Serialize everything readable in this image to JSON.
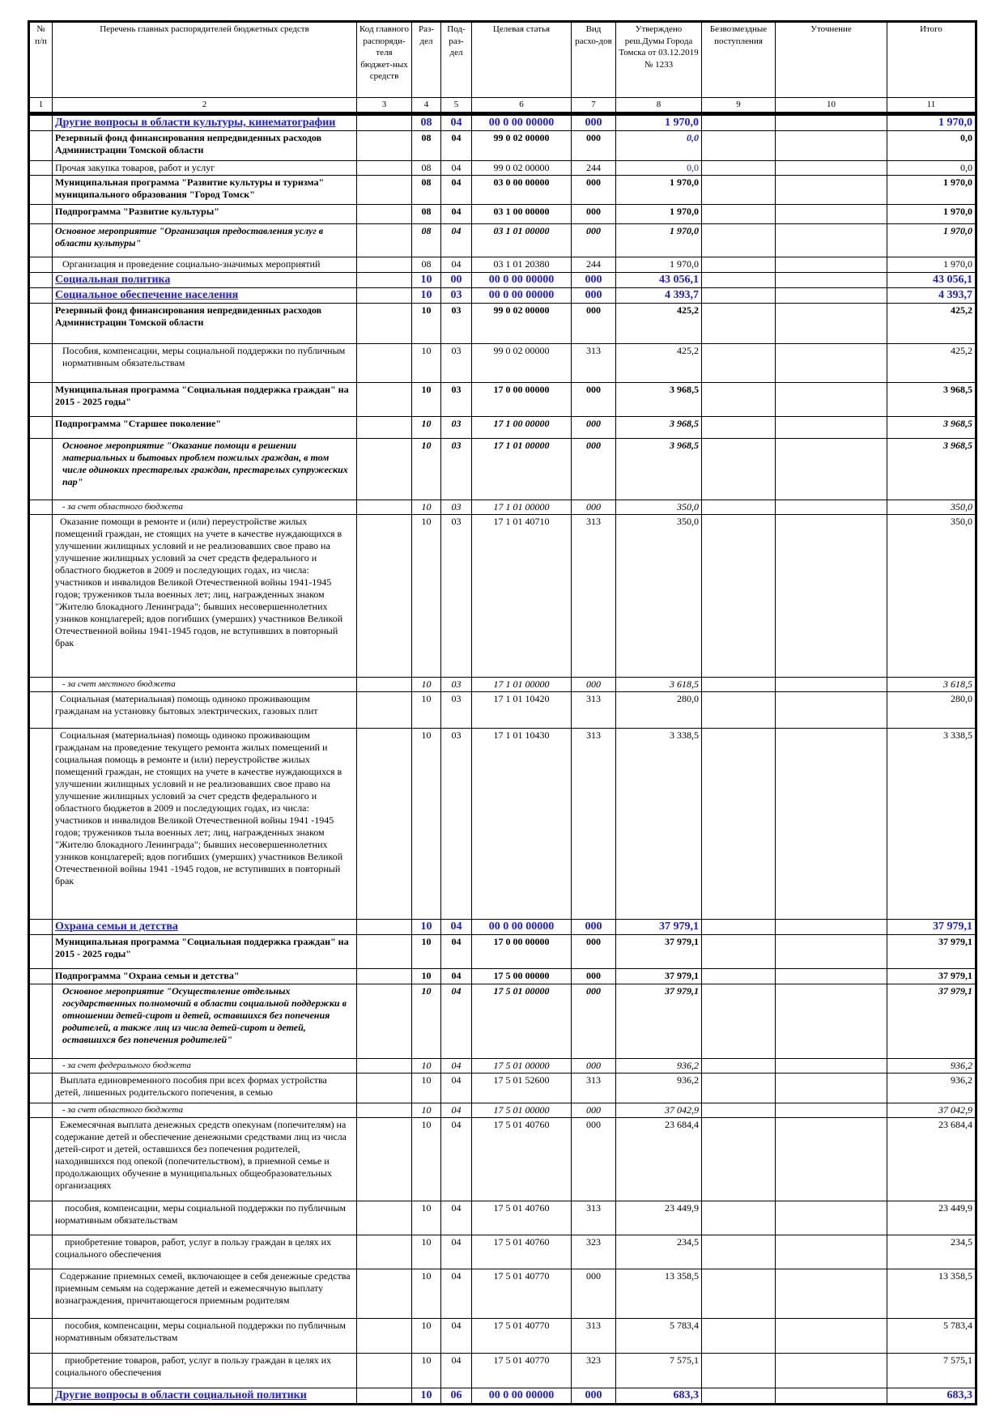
{
  "header": {
    "col1": "№ п/п",
    "col2": "Перечень главных распорядителей бюджетных средств",
    "col3": "Код главного распоряди-теля бюджет-ных средств",
    "col4": "Раз-дел",
    "col5": "Под-раз-дел",
    "col6": "Целевая статья",
    "col7": "Вид расхо-дов",
    "col8": "Утверждено реш.Думы Города Томска от 03.12.2019 № 1233",
    "col9": "Безвозмездные поступления",
    "col10": "Уточнение",
    "col11": "Итого"
  },
  "column_numbers": [
    "1",
    "2",
    "3",
    "4",
    "5",
    "6",
    "7",
    "8",
    "9",
    "10",
    "11"
  ],
  "accent_color": "#1a1aff",
  "rows": [
    {
      "style": "section",
      "name": "Другие вопросы в области культуры, кинематографии",
      "rz": "08",
      "prz": "04",
      "cs": "00 0 00 00000",
      "vr": "000",
      "approved": "1 970,0",
      "total": "1 970,0"
    },
    {
      "style": "bold",
      "name": "Резервный фонд финансирования непредвиденных расходов Администрации Томской области",
      "rz": "08",
      "prz": "04",
      "cs": "99 0 02 00000",
      "vr": "000",
      "approved": "0,0",
      "approved_color": "#1a1aff",
      "approved_italic": true,
      "total": "0,0"
    },
    {
      "style": "normal",
      "name": "Прочая закупка товаров, работ и услуг",
      "rz": "08",
      "prz": "04",
      "cs": "99 0 02 00000",
      "vr": "244",
      "approved": "0,0",
      "approved_color": "#1a1aff",
      "total": "0,0"
    },
    {
      "style": "bold",
      "name": "Муниципальная программа \"Развитие культуры и туризма\" муниципального образования \"Город Томск\"",
      "rz": "08",
      "prz": "04",
      "cs": "03 0 00 00000",
      "vr": "000",
      "approved": "1 970,0",
      "total": "1 970,0"
    },
    {
      "style": "bold",
      "name": "Подпрограмма \"Развитие культуры\"",
      "rz": "08",
      "prz": "04",
      "cs": "03 1 00 00000",
      "vr": "000",
      "approved": "1 970,0",
      "total": "1 970,0"
    },
    {
      "style": "bolditalic",
      "name": " Основное мероприятие \"Организация предоставления услуг в области культуры\"",
      "rz": "08",
      "prz": "04",
      "cs": "03 1 01 00000",
      "vr": "000",
      "approved": "1 970,0",
      "total": "1 970,0"
    },
    {
      "style": "normal",
      "name": "Организация и проведение социально-значимых мероприятий",
      "rz": "08",
      "prz": "04",
      "cs": "03 1 01 20380",
      "vr": "244",
      "approved": "1 970,0",
      "total": "1 970,0",
      "indent": true
    },
    {
      "style": "section",
      "name": "Социальная политика",
      "rz": "10",
      "prz": "00",
      "cs": "00 0 00 00000",
      "vr": "000",
      "approved": "43 056,1",
      "total": "43 056,1"
    },
    {
      "style": "section",
      "name": "Социальное обеспечение населения",
      "rz": "10",
      "prz": "03",
      "cs": "00 0 00 00000",
      "vr": "000",
      "approved": "4 393,7",
      "total": "4 393,7"
    },
    {
      "style": "bold",
      "name": "Резервный фонд финансирования непредвиденных расходов Администрации Томской области",
      "rz": "10",
      "prz": "03",
      "cs": "99 0 02 00000",
      "vr": "000",
      "approved": "425,2",
      "total": "425,2"
    },
    {
      "style": "normal",
      "name": "Пособия, компенсации, меры социальной поддержки по публичным нормативным обязательствам",
      "rz": "10",
      "prz": "03",
      "cs": "99 0 02 00000",
      "vr": "313",
      "approved": "425,2",
      "total": "425,2",
      "indent": true
    },
    {
      "style": "bold",
      "name": "Муниципальная программа \"Социальная поддержка граждан\" на 2015 - 2025 годы\"",
      "rz": "10",
      "prz": "03",
      "cs": "17 0 00 00000",
      "vr": "000",
      "approved": "3 968,5",
      "total": "3 968,5"
    },
    {
      "style": "bold-numitalic",
      "name": "Подпрограмма \"Старшее поколение\"",
      "rz": "10",
      "prz": "03",
      "cs": "17 1 00 00000",
      "vr": "000",
      "approved": "3 968,5",
      "total": "3 968,5"
    },
    {
      "style": "bolditalic",
      "name": "Основное мероприятие \"Оказание помощи в решении материальных и бытовых проблем пожилых граждан, в том числе одиноких престарелых граждан, престарелых супружеских пар\"",
      "rz": "10",
      "prz": "03",
      "cs": "17 1 01 00000",
      "vr": "000",
      "approved": "3 968,5",
      "total": "3 968,5",
      "indent": true
    },
    {
      "style": "small-italic",
      "name": "- за счет областного бюджета",
      "rz": "10",
      "prz": "03",
      "cs": "17 1 01 00000",
      "vr": "000",
      "approved": "350,0",
      "total": "350,0",
      "indent": true
    },
    {
      "style": "normal",
      "name": "Оказание помощи в ремонте и (или) переустройстве жилых помещений граждан, не стоящих на учете в качестве нуждающихся в улучшении жилищных условий и не реализовавших свое право на улучшение жилищных условий за счет средств федерального и областного бюджетов в 2009 и последующих годах, из числа: участников и инвалидов Великой Отечественной войны 1941-1945 годов; тружеников тыла военных лет; лиц, награжденных знаком \"Жителю блокадного Ленинграда\"; бывших несовершеннолетних узников концлагерей; вдов погибших (умерших) участников Великой Отечественной войны 1941-1945 годов, не вступивших в повторный брак",
      "rz": "10",
      "prz": "03",
      "cs": "17 1 01 40710",
      "vr": "313",
      "approved": "350,0",
      "total": "350,0",
      "first_indent": true
    },
    {
      "style": "small-italic",
      "name": "- за счет местного бюджета",
      "rz": "10",
      "prz": "03",
      "cs": "17 1 01 00000",
      "vr": "000",
      "approved": "3 618,5",
      "total": "3 618,5",
      "indent": true
    },
    {
      "style": "normal",
      "name": "Социальная (материальная) помощь одиноко проживающим гражданам на установку бытовых электрических, газовых плит",
      "rz": "10",
      "prz": "03",
      "cs": "17 1 01 10420",
      "vr": "313",
      "approved": "280,0",
      "total": "280,0",
      "first_indent": true
    },
    {
      "style": "normal",
      "name": "Социальная (материальная) помощь одиноко проживающим гражданам на проведение текущего ремонта жилых помещений и социальная помощь в ремонте и (или) переустройстве жилых помещений граждан, не стоящих на учете в качестве нуждающихся в улучшении жилищных условий и не реализовавших свое право на улучшение жилищных условий за счет средств федерального и областного бюджетов в 2009 и последующих годах, из числа: участников и инвалидов Великой Отечественной войны 1941 -1945 годов; тружеников тыла военных лет; лиц, награжденных знаком \"Жителю блокадного Ленинграда\"; бывших несовершеннолетних узников концлагерей; вдов погибших (умерших) участников Великой Отечественной войны 1941 -1945 годов, не вступивших в повторный брак",
      "rz": "10",
      "prz": "03",
      "cs": "17 1 01 10430",
      "vr": "313",
      "approved": "3 338,5",
      "total": "3 338,5",
      "first_indent": true
    },
    {
      "style": "section",
      "name": "Охрана семьи и детства",
      "rz": "10",
      "prz": "04",
      "cs": "00 0 00 00000",
      "vr": "000",
      "approved": "37 979,1",
      "total": "37 979,1"
    },
    {
      "style": "bold",
      "name": "Муниципальная программа \"Социальная поддержка граждан\" на 2015 - 2025 годы\"",
      "rz": "10",
      "prz": "04",
      "cs": "17 0 00 00000",
      "vr": "000",
      "approved": "37 979,1",
      "total": "37 979,1"
    },
    {
      "style": "bold",
      "name": "Подпрограмма \"Охрана семьи и детства\"",
      "rz": "10",
      "prz": "04",
      "cs": "17 5 00 00000",
      "vr": "000",
      "approved": "37 979,1",
      "total": "37 979,1"
    },
    {
      "style": "bolditalic",
      "name": "Основное мероприятие \"Осуществление отдельных государственных полномочий в области социальной поддержки в отношении детей-сирот и детей, оставшихся без попечения родителей, а также лиц из числа детей-сирот и детей, оставшихся без попечения родителей\"",
      "rz": "10",
      "prz": "04",
      "cs": "17 5 01 00000",
      "vr": "000",
      "approved": "37 979,1",
      "total": "37 979,1",
      "indent": true
    },
    {
      "style": "small-italic",
      "name": "- за счет федерального бюджета",
      "rz": "10",
      "prz": "04",
      "cs": "17 5 01 00000",
      "vr": "000",
      "approved": "936,2",
      "total": "936,2",
      "indent": true
    },
    {
      "style": "normal",
      "name": "Выплата единовременного пособия при всех формах устройства детей, лишенных родительского попечения, в семью",
      "rz": "10",
      "prz": "04",
      "cs": "17 5 01 52600",
      "vr": "313",
      "approved": "936,2",
      "total": "936,2",
      "first_indent": true
    },
    {
      "style": "small-italic",
      "name": "- за счет областного бюджета",
      "rz": "10",
      "prz": "04",
      "cs": "17 5 01 00000",
      "vr": "000",
      "approved": "37 042,9",
      "total": "37 042,9",
      "indent": true
    },
    {
      "style": "normal",
      "name": "Ежемесячная выплата денежных средств опекунам (попечителям) на содержание детей и обеспечение денежными средствами лиц из числа детей-сирот и детей, оставшихся без попечения родителей, находившихся под опекой (попечительством), в приемной семье и продолжающих обучение в муниципальных общеобразовательных организациях",
      "rz": "10",
      "prz": "04",
      "cs": "17 5 01 40760",
      "vr": "000",
      "approved": "23 684,4",
      "total": "23 684,4",
      "first_indent": true
    },
    {
      "style": "normal",
      "name": "пособия, компенсации, меры социальной поддержки по публичным нормативным обязательствам",
      "rz": "10",
      "prz": "04",
      "cs": "17 5 01 40760",
      "vr": "313",
      "approved": "23 449,9",
      "total": "23 449,9",
      "first_indent2": true
    },
    {
      "style": "normal",
      "name": "приобретение товаров, работ, услуг в пользу граждан в целях их социального обеспечения",
      "rz": "10",
      "prz": "04",
      "cs": "17 5 01 40760",
      "vr": "323",
      "approved": "234,5",
      "total": "234,5",
      "first_indent2": true
    },
    {
      "style": "normal",
      "name": "Содержание приемных семей, включающее в себя денежные средства приемным семьям на содержание детей и ежемесячную выплату вознаграждения, причитающегося приемным родителям",
      "rz": "10",
      "prz": "04",
      "cs": "17 5 01 40770",
      "vr": "000",
      "approved": "13 358,5",
      "total": "13 358,5",
      "first_indent": true
    },
    {
      "style": "normal",
      "name": "пособия, компенсации, меры социальной поддержки по публичным нормативным обязательствам",
      "rz": "10",
      "prz": "04",
      "cs": "17 5 01 40770",
      "vr": "313",
      "approved": "5 783,4",
      "total": "5 783,4",
      "first_indent2": true
    },
    {
      "style": "normal",
      "name": "приобретение товаров, работ, услуг в пользу граждан в целях их социального обеспечения",
      "rz": "10",
      "prz": "04",
      "cs": "17 5 01 40770",
      "vr": "323",
      "approved": "7 575,1",
      "total": "7 575,1",
      "first_indent2": true
    },
    {
      "style": "section",
      "name": "Другие вопросы в области социальной политики",
      "rz": "10",
      "prz": "06",
      "cs": "00 0 00 00000",
      "vr": "000",
      "approved": "683,3",
      "total": "683,3"
    }
  ]
}
